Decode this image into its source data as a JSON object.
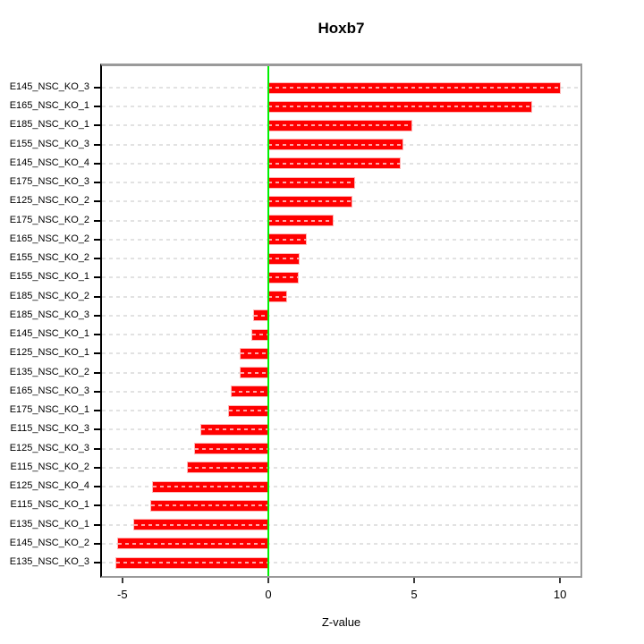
{
  "title": "Hoxb7",
  "chart_data": {
    "type": "bar",
    "orientation": "horizontal",
    "title": "Hoxb7",
    "xlabel": "Z-value",
    "categories": [
      "E145_NSC_KO_3",
      "E165_NSC_KO_1",
      "E185_NSC_KO_1",
      "E155_NSC_KO_3",
      "E145_NSC_KO_4",
      "E175_NSC_KO_3",
      "E125_NSC_KO_2",
      "E175_NSC_KO_2",
      "E165_NSC_KO_2",
      "E155_NSC_KO_2",
      "E155_NSC_KO_1",
      "E185_NSC_KO_2",
      "E185_NSC_KO_3",
      "E145_NSC_KO_1",
      "E125_NSC_KO_1",
      "E135_NSC_KO_2",
      "E165_NSC_KO_3",
      "E175_NSC_KO_1",
      "E115_NSC_KO_3",
      "E125_NSC_KO_3",
      "E115_NSC_KO_2",
      "E125_NSC_KO_4",
      "E115_NSC_KO_1",
      "E135_NSC_KO_1",
      "E145_NSC_KO_2",
      "E135_NSC_KO_3"
    ],
    "values": [
      10.0,
      9.0,
      4.9,
      4.6,
      4.5,
      2.95,
      2.85,
      2.2,
      1.3,
      1.05,
      1.0,
      0.6,
      -0.5,
      -0.55,
      -0.95,
      -0.95,
      -1.25,
      -1.35,
      -2.3,
      -2.5,
      -2.75,
      -3.95,
      -4.0,
      -4.6,
      -5.15,
      -5.2
    ],
    "xlim": [
      -5.7,
      10.7
    ],
    "xticks": [
      -5,
      0,
      5,
      10
    ],
    "zero_reference_line": 0,
    "grid": true,
    "legend": "none",
    "colors": {
      "bar": "#ff0000",
      "bar_edge": "#ffaaaa",
      "zero_line": "#00f000",
      "grid_line": "#e2e2e2",
      "box": "#9a9a9a",
      "axis": "#000000",
      "background": "#ffffff"
    }
  }
}
